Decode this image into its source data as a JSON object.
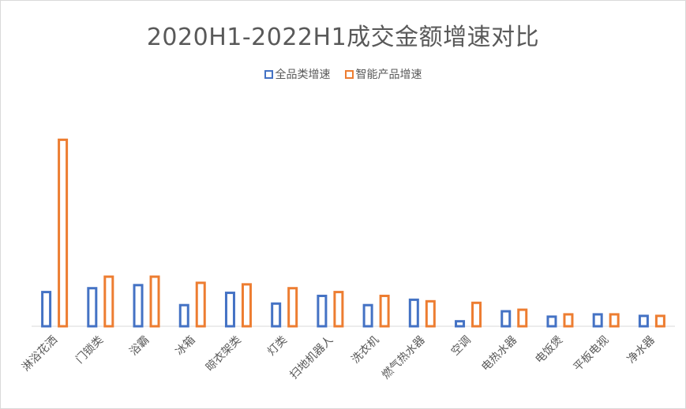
{
  "chart_data": {
    "type": "bar",
    "title": "2020H1-2022H1成交金额增速对比",
    "categories": [
      "淋浴花洒",
      "门锁类",
      "浴霸",
      "冰箱",
      "晾衣架类",
      "灯类",
      "扫地机器人",
      "洗衣机",
      "燃气热水器",
      "空调",
      "电热水器",
      "电饭煲",
      "平板电视",
      "净水器"
    ],
    "series": [
      {
        "name": "全品类增速",
        "color": "#4472C4",
        "values": [
          46,
          51,
          55,
          29,
          45,
          31,
          41,
          29,
          36,
          8,
          21,
          14,
          17,
          15
        ]
      },
      {
        "name": "智能产品增速",
        "color": "#ED7D31",
        "values": [
          244,
          66,
          66,
          58,
          56,
          51,
          46,
          41,
          34,
          32,
          23,
          17,
          17,
          15
        ]
      }
    ],
    "ylim": [
      0,
      250
    ],
    "legend_position": "top",
    "grid": false
  }
}
